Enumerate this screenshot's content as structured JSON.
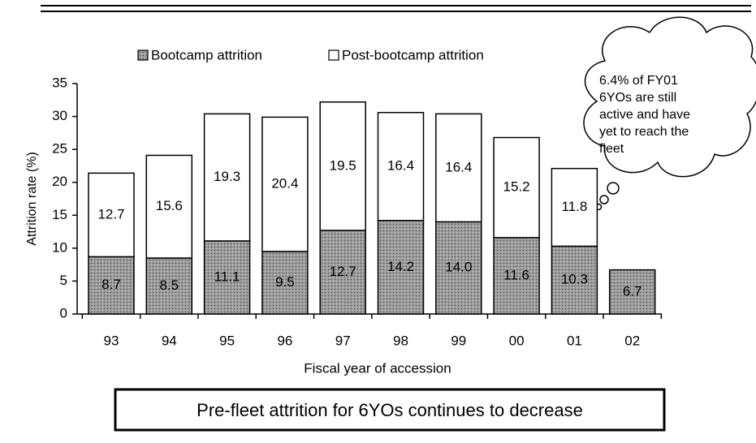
{
  "chart_data": {
    "type": "stacked_bar",
    "y_label": "Attrition rate (%)",
    "x_label": "Fiscal year of accession",
    "categories": [
      "93",
      "94",
      "95",
      "96",
      "97",
      "98",
      "99",
      "00",
      "01",
      "02"
    ],
    "series": [
      {
        "name": "Bootcamp attrition",
        "color": "#9a9a9a",
        "values": [
          8.7,
          8.5,
          11.1,
          9.5,
          12.7,
          14.2,
          14.0,
          11.6,
          10.3,
          6.7
        ],
        "value_labels": [
          "8.7",
          "8.5",
          "11.1",
          "9.5",
          "12.7",
          "14.2",
          "14.0",
          "11.6",
          "10.3",
          "6.7"
        ]
      },
      {
        "name": "Post-bootcamp attrition",
        "color": "#ffffff",
        "values": [
          12.7,
          15.6,
          19.3,
          20.4,
          19.5,
          16.4,
          16.4,
          15.2,
          11.8,
          null
        ],
        "value_labels": [
          "12.7",
          "15.6",
          "19.3",
          "20.4",
          "19.5",
          "16.4",
          "16.4",
          "15.2",
          "11.8",
          null
        ]
      }
    ],
    "ylim": [
      0,
      35
    ],
    "yticks": [
      0,
      5,
      10,
      15,
      20,
      25,
      30,
      35
    ],
    "annotation": [
      "6.4% of FY01",
      "6YOs are still",
      "active and have",
      "yet to reach the",
      "fleet"
    ],
    "footer": "Pre-fleet attrition for 6YOs continues to decrease"
  }
}
